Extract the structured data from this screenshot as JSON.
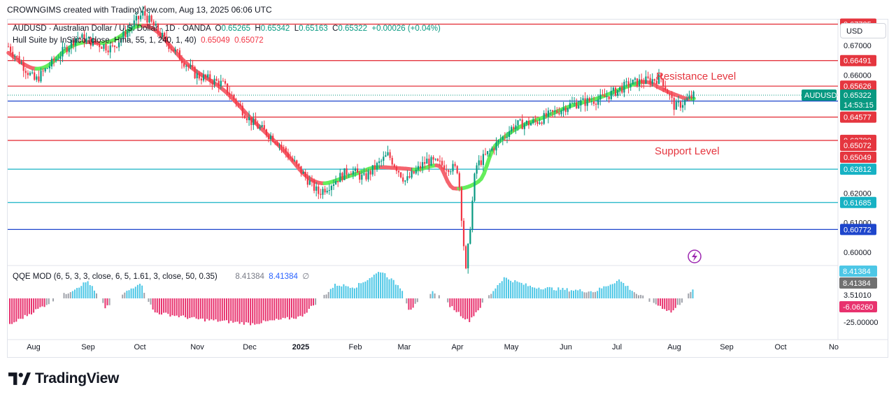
{
  "header": {
    "credit": "CROWNGIMS created with TradingView.com, Aug 13, 2025 06:06 UTC"
  },
  "legend": {
    "symbol": "AUDUSD · Australian Dollar / U.S. Dollar · 1D · OANDA",
    "o_label": "O",
    "o_value": "0.65265",
    "h_label": "H",
    "h_value": "0.65342",
    "l_label": "L",
    "l_value": "0.65163",
    "c_label": "C",
    "c_value": "0.65322",
    "change": "+0.00026 (+0.04%)",
    "indicator": "Hull Suite by InSilico (close, Hma, 55, 1, 240, 1, 40)",
    "ind_v1": "0.65049",
    "ind_v2": "0.65072",
    "qqe_label": "QQE MOD (6, 5, 3, 3, close, 6, 5, 1.61, 3, close, 50, 0.35)",
    "qqe_v1": "8.41384",
    "qqe_v2": "8.41384",
    "qqe_eye": "∅"
  },
  "currency_button": "USD",
  "annotations": {
    "resistance": "Resistance Level",
    "support": "Support Level"
  },
  "logo_text": "TradingView",
  "colors": {
    "up": "#089981",
    "down": "#f23645",
    "hull_up": "#64ee5c",
    "hull_down": "#f5646e",
    "resistance_line": "#e5363f",
    "cyan_line": "#17b2c4",
    "blue_line": "#1e46cc",
    "hist_pos": "#4dc7e6",
    "hist_neg": "#e8326e",
    "hist_gray": "#a0a3ab"
  },
  "chart_data": [
    {
      "type": "candlestick",
      "title": "AUDUSD · Australian Dollar / U.S. Dollar · 1D · OANDA",
      "ylim": [
        0.5955,
        0.6788
      ],
      "y_ticks": [
        "0.67000",
        "0.66000",
        "0.62000",
        "0.61000",
        "0.60000"
      ],
      "x_ticks": [
        "Aug",
        "Sep",
        "Oct",
        "Nov",
        "Dec",
        "2025",
        "Feb",
        "Mar",
        "Apr",
        "May",
        "Jun",
        "Jul",
        "Aug",
        "Sep",
        "Oct",
        "No"
      ],
      "close_path": [
        [
          "Aug",
          0.67
        ],
        [
          "Aug",
          0.658
        ],
        [
          "Sep",
          0.673
        ],
        [
          "Sep",
          0.669
        ],
        [
          "Oct",
          0.681
        ],
        [
          "Oct",
          0.672
        ],
        [
          "Nov",
          0.66
        ],
        [
          "Nov",
          0.657
        ],
        [
          "Dec",
          0.644
        ],
        [
          "Dec",
          0.638
        ],
        [
          "2025",
          0.62
        ],
        [
          "2025",
          0.628
        ],
        [
          "Feb",
          0.625
        ],
        [
          "Feb",
          0.633
        ],
        [
          "Mar",
          0.624
        ],
        [
          "Mar",
          0.631
        ],
        [
          "Apr",
          0.628
        ],
        [
          "Apr",
          0.593
        ],
        [
          "Apr",
          0.629
        ],
        [
          "May",
          0.643
        ],
        [
          "May",
          0.644
        ],
        [
          "Jun",
          0.65
        ],
        [
          "Jun",
          0.652
        ],
        [
          "Jul",
          0.657
        ],
        [
          "Jul",
          0.659
        ],
        [
          "Aug",
          0.649
        ],
        [
          "Aug",
          0.6532
        ]
      ],
      "last_price": "0.65322",
      "countdown": "14:53:15",
      "horizontal_levels": [
        {
          "value": 0.67725,
          "label": "0.67725",
          "color": "#e5363f"
        },
        {
          "value": 0.66491,
          "label": "0.66491",
          "color": "#e5363f"
        },
        {
          "value": 0.65626,
          "label": "0.65626",
          "color": "#e5363f"
        },
        {
          "value": 0.6512,
          "label": "0.65120",
          "color": "#1e46cc"
        },
        {
          "value": 0.64577,
          "label": "0.64577",
          "color": "#e5363f"
        },
        {
          "value": 0.63788,
          "label": "0.63788",
          "color": "#e5363f"
        },
        {
          "value": 0.62812,
          "label": "0.62812",
          "color": "#17b2c4"
        },
        {
          "value": 0.61685,
          "label": "0.61685",
          "color": "#17b2c4"
        },
        {
          "value": 0.60772,
          "label": "0.60772",
          "color": "#1e46cc"
        }
      ],
      "price_labels": [
        {
          "text": "AUDUSD",
          "value": 0.65322,
          "color": "#089981"
        },
        {
          "text": "0.65322",
          "value": 0.65322,
          "color": "#089981"
        },
        {
          "text": "0.65072",
          "value": 0.65072,
          "color": "#e5363f"
        },
        {
          "text": "0.65049",
          "value": 0.65049,
          "color": "#e5363f"
        }
      ]
    },
    {
      "type": "bar",
      "title": "QQE MOD (6, 5, 3, 3, close, 6, 5, 1.61, 3, close, 50, 0.35)",
      "y_ticks": [
        "3.51010",
        "-25.00000"
      ],
      "current_value": 8.41384,
      "price_labels": [
        {
          "text": "8.41384",
          "color": "#4dc7e6"
        },
        {
          "text": "8.41384",
          "color": "#707070"
        },
        {
          "text": "-6.06260",
          "color": "#e8326e"
        }
      ],
      "series_profile": [
        [
          "Aug",
          -24
        ],
        [
          "Sep",
          15
        ],
        [
          "Sep",
          -8
        ],
        [
          "Oct",
          14
        ],
        [
          "Oct",
          -12
        ],
        [
          "Nov",
          -18
        ],
        [
          "Dec",
          -22
        ],
        [
          "2025",
          -16
        ],
        [
          "2025",
          12
        ],
        [
          "Feb",
          10
        ],
        [
          "Feb",
          24
        ],
        [
          "Mar",
          8
        ],
        [
          "Mar",
          -10
        ],
        [
          "Apr",
          6
        ],
        [
          "Apr",
          -20
        ],
        [
          "May",
          18
        ],
        [
          "May",
          10
        ],
        [
          "Jun",
          8
        ],
        [
          "Jun",
          6
        ],
        [
          "Jul",
          16
        ],
        [
          "Jul",
          4
        ],
        [
          "Aug",
          -12
        ],
        [
          "Aug",
          8.41384
        ]
      ]
    }
  ]
}
